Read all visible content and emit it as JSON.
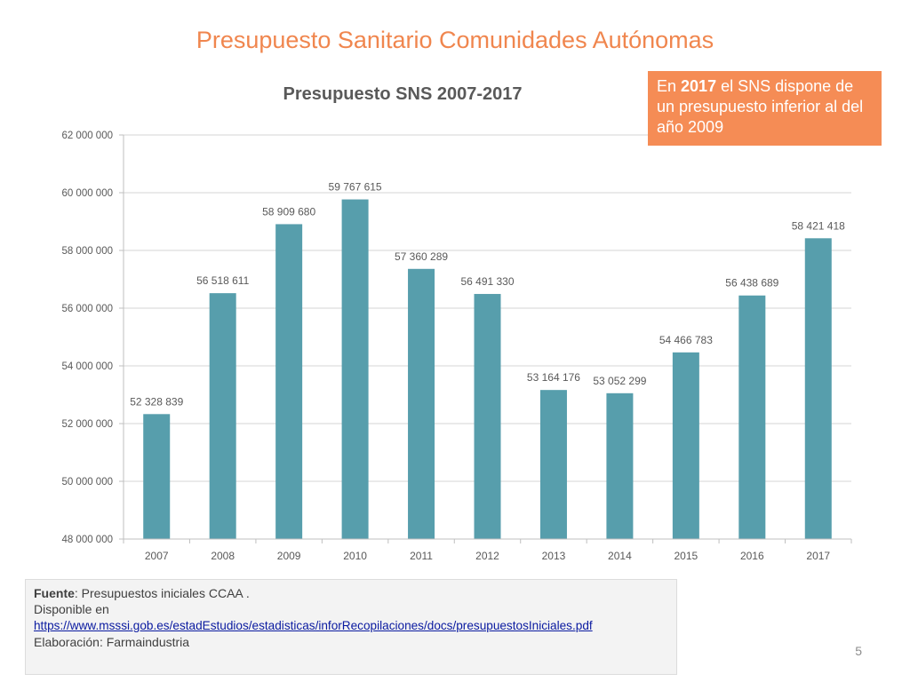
{
  "slide": {
    "title": "Presupuesto Sanitario Comunidades Autónomas",
    "page_number": "5"
  },
  "callout": {
    "prefix": "En ",
    "year": "2017",
    "text": " el SNS dispone de un presupuesto inferior al del año 2009"
  },
  "source": {
    "label": "Fuente",
    "text": ": Presupuestos iniciales CCAA .",
    "available": "Disponible en",
    "url": "https://www.msssi.gob.es/estadEstudios/estadisticas/inforRecopilaciones/docs/presupuestosIniciales.pdf",
    "elaboration": "Elaboración:  Farmaindustria"
  },
  "colors": {
    "bar": "#579eac",
    "title": "#f0864e",
    "callout": "#f58c55"
  },
  "chart_data": {
    "type": "bar",
    "title": "Presupuesto SNS 2007-2017",
    "categories": [
      "2007",
      "2008",
      "2009",
      "2010",
      "2011",
      "2012",
      "2013",
      "2014",
      "2015",
      "2016",
      "2017"
    ],
    "values": [
      52328839,
      56518611,
      58909680,
      59767615,
      57360289,
      56491330,
      53164176,
      53052299,
      54466783,
      56438689,
      58421418
    ],
    "value_labels": [
      "52 328 839",
      "56 518 611",
      "58 909 680",
      "59 767 615",
      "57 360 289",
      "56 491 330",
      "53 164 176",
      "53 052 299",
      "54 466 783",
      "56 438 689",
      "58 421 418"
    ],
    "yticks": [
      48000000,
      50000000,
      52000000,
      54000000,
      56000000,
      58000000,
      60000000,
      62000000
    ],
    "ytick_labels": [
      "48 000 000",
      "50 000 000",
      "52 000 000",
      "54 000 000",
      "56 000 000",
      "58 000 000",
      "60 000 000",
      "62 000 000"
    ],
    "ylim": [
      48000000,
      62000000
    ],
    "xlabel": "",
    "ylabel": "",
    "grid": true,
    "legend": false
  }
}
